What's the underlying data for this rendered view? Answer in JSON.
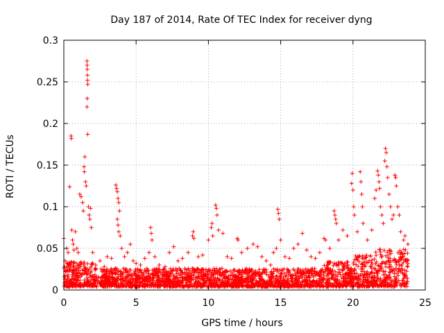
{
  "chart_data": {
    "type": "scatter",
    "title": "Day 187 of 2014, Rate Of TEC Index for receiver dyng",
    "xlabel": "GPS time / hours",
    "ylabel": "ROTI / TECUs",
    "xlim": [
      0,
      25
    ],
    "ylim": [
      0,
      0.3
    ],
    "xticks": [
      0,
      5,
      10,
      15,
      20,
      25
    ],
    "xtick_labels": [
      "0",
      "5",
      "10",
      "15",
      "20",
      "25"
    ],
    "yticks": [
      0,
      0.05,
      0.1,
      0.15,
      0.2,
      0.25,
      0.3
    ],
    "ytick_labels": [
      "0",
      "0.05",
      "0.1",
      "0.15",
      "0.2",
      "0.25",
      "0.3"
    ],
    "grid": true,
    "marker": "+",
    "color": "#ff0000",
    "series": [
      {
        "name": "ROTI",
        "points": [
          [
            0.0,
            0.062
          ],
          [
            0.05,
            0.028
          ],
          [
            0.1,
            0.035
          ],
          [
            0.2,
            0.05
          ],
          [
            0.3,
            0.045
          ],
          [
            0.4,
            0.124
          ],
          [
            0.5,
            0.185
          ],
          [
            0.52,
            0.182
          ],
          [
            0.55,
            0.072
          ],
          [
            0.6,
            0.06
          ],
          [
            0.65,
            0.055
          ],
          [
            0.7,
            0.048
          ],
          [
            0.8,
            0.07
          ],
          [
            0.9,
            0.05
          ],
          [
            1.0,
            0.045
          ],
          [
            1.1,
            0.115
          ],
          [
            1.2,
            0.112
          ],
          [
            1.3,
            0.105
          ],
          [
            1.35,
            0.095
          ],
          [
            1.4,
            0.148
          ],
          [
            1.42,
            0.142
          ],
          [
            1.45,
            0.16
          ],
          [
            1.5,
            0.13
          ],
          [
            1.55,
            0.125
          ],
          [
            1.6,
            0.275
          ],
          [
            1.61,
            0.27
          ],
          [
            1.62,
            0.265
          ],
          [
            1.63,
            0.258
          ],
          [
            1.64,
            0.252
          ],
          [
            1.65,
            0.247
          ],
          [
            1.62,
            0.23
          ],
          [
            1.6,
            0.22
          ],
          [
            1.65,
            0.187
          ],
          [
            1.7,
            0.1
          ],
          [
            1.75,
            0.09
          ],
          [
            1.8,
            0.085
          ],
          [
            1.85,
            0.098
          ],
          [
            1.9,
            0.075
          ],
          [
            2.0,
            0.045
          ],
          [
            2.2,
            0.03
          ],
          [
            2.5,
            0.035
          ],
          [
            2.8,
            0.028
          ],
          [
            3.0,
            0.04
          ],
          [
            3.3,
            0.038
          ],
          [
            3.6,
            0.126
          ],
          [
            3.65,
            0.122
          ],
          [
            3.7,
            0.118
          ],
          [
            3.75,
            0.11
          ],
          [
            3.8,
            0.105
          ],
          [
            3.85,
            0.095
          ],
          [
            3.7,
            0.085
          ],
          [
            3.75,
            0.078
          ],
          [
            3.8,
            0.07
          ],
          [
            3.9,
            0.065
          ],
          [
            4.0,
            0.05
          ],
          [
            4.2,
            0.04
          ],
          [
            4.4,
            0.045
          ],
          [
            4.6,
            0.055
          ],
          [
            4.8,
            0.035
          ],
          [
            5.0,
            0.032
          ],
          [
            5.3,
            0.03
          ],
          [
            5.6,
            0.038
          ],
          [
            5.9,
            0.045
          ],
          [
            6.0,
            0.075
          ],
          [
            6.05,
            0.068
          ],
          [
            6.1,
            0.06
          ],
          [
            6.3,
            0.04
          ],
          [
            6.6,
            0.03
          ],
          [
            7.0,
            0.028
          ],
          [
            7.3,
            0.045
          ],
          [
            7.6,
            0.052
          ],
          [
            7.9,
            0.035
          ],
          [
            8.2,
            0.038
          ],
          [
            8.6,
            0.045
          ],
          [
            8.9,
            0.065
          ],
          [
            8.95,
            0.07
          ],
          [
            9.0,
            0.062
          ],
          [
            9.3,
            0.04
          ],
          [
            9.6,
            0.042
          ],
          [
            10.0,
            0.06
          ],
          [
            10.2,
            0.075
          ],
          [
            10.25,
            0.08
          ],
          [
            10.3,
            0.065
          ],
          [
            10.5,
            0.102
          ],
          [
            10.55,
            0.098
          ],
          [
            10.6,
            0.09
          ],
          [
            10.7,
            0.072
          ],
          [
            11.0,
            0.068
          ],
          [
            11.3,
            0.04
          ],
          [
            11.6,
            0.038
          ],
          [
            12.0,
            0.062
          ],
          [
            12.05,
            0.06
          ],
          [
            12.3,
            0.045
          ],
          [
            12.7,
            0.05
          ],
          [
            13.1,
            0.055
          ],
          [
            13.4,
            0.052
          ],
          [
            13.7,
            0.04
          ],
          [
            14.0,
            0.035
          ],
          [
            14.3,
            0.03
          ],
          [
            14.5,
            0.045
          ],
          [
            14.7,
            0.05
          ],
          [
            14.8,
            0.097
          ],
          [
            14.85,
            0.092
          ],
          [
            14.9,
            0.085
          ],
          [
            15.0,
            0.06
          ],
          [
            15.3,
            0.04
          ],
          [
            15.6,
            0.038
          ],
          [
            15.9,
            0.05
          ],
          [
            16.2,
            0.055
          ],
          [
            16.5,
            0.068
          ],
          [
            16.8,
            0.048
          ],
          [
            17.1,
            0.04
          ],
          [
            17.4,
            0.038
          ],
          [
            17.7,
            0.045
          ],
          [
            18.0,
            0.062
          ],
          [
            18.1,
            0.06
          ],
          [
            18.4,
            0.05
          ],
          [
            18.7,
            0.095
          ],
          [
            18.75,
            0.09
          ],
          [
            18.8,
            0.085
          ],
          [
            18.85,
            0.08
          ],
          [
            19.0,
            0.06
          ],
          [
            19.3,
            0.072
          ],
          [
            19.6,
            0.065
          ],
          [
            19.9,
            0.128
          ],
          [
            19.95,
            0.14
          ],
          [
            20.0,
            0.12
          ],
          [
            20.05,
            0.1
          ],
          [
            20.1,
            0.09
          ],
          [
            20.3,
            0.07
          ],
          [
            20.5,
            0.142
          ],
          [
            20.55,
            0.13
          ],
          [
            20.6,
            0.115
          ],
          [
            20.65,
            0.1
          ],
          [
            20.7,
            0.08
          ],
          [
            21.0,
            0.06
          ],
          [
            21.3,
            0.072
          ],
          [
            21.5,
            0.11
          ],
          [
            21.6,
            0.12
          ],
          [
            21.7,
            0.143
          ],
          [
            21.75,
            0.138
          ],
          [
            21.8,
            0.13
          ],
          [
            21.85,
            0.122
          ],
          [
            21.9,
            0.1
          ],
          [
            22.0,
            0.09
          ],
          [
            22.1,
            0.08
          ],
          [
            22.2,
            0.155
          ],
          [
            22.25,
            0.17
          ],
          [
            22.3,
            0.165
          ],
          [
            22.35,
            0.148
          ],
          [
            22.4,
            0.135
          ],
          [
            22.5,
            0.115
          ],
          [
            22.6,
            0.1
          ],
          [
            22.7,
            0.085
          ],
          [
            22.8,
            0.09
          ],
          [
            22.9,
            0.138
          ],
          [
            22.95,
            0.135
          ],
          [
            23.0,
            0.125
          ],
          [
            23.1,
            0.1
          ],
          [
            23.2,
            0.09
          ],
          [
            23.3,
            0.07
          ],
          [
            23.5,
            0.06
          ],
          [
            23.6,
            0.065
          ],
          [
            23.8,
            0.055
          ]
        ]
      }
    ]
  }
}
